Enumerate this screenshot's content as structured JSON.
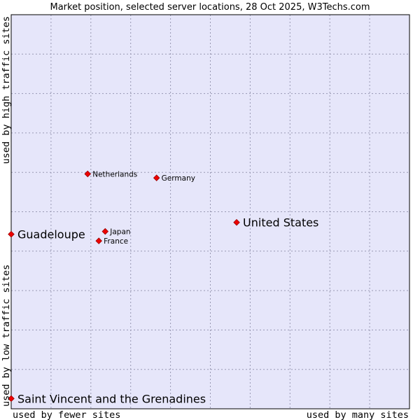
{
  "chart_data": {
    "type": "scatter",
    "title": "Market position, selected server locations, 28 Oct 2025, W3Techs.com",
    "xlabel_low": "used by fewer sites",
    "xlabel_high": "used by many sites",
    "ylabel_low": "used by low traffic sites",
    "ylabel_high": "used by high traffic sites",
    "xlim": [
      0,
      100
    ],
    "ylim": [
      0,
      100
    ],
    "grid": true,
    "colors": {
      "plot_bg": "#e6e6fa",
      "grid": "#9999b3",
      "marker": "#ee0000",
      "marker_edge": "#990000",
      "frame": "#000000"
    },
    "points": [
      {
        "label": "Netherlands",
        "x": 19.2,
        "y": 59.6,
        "size": "small"
      },
      {
        "label": "Germany",
        "x": 36.5,
        "y": 58.6,
        "size": "small"
      },
      {
        "label": "United States",
        "x": 56.6,
        "y": 47.3,
        "size": "big"
      },
      {
        "label": "Guadeloupe",
        "x": 0.0,
        "y": 44.3,
        "size": "big"
      },
      {
        "label": "Japan",
        "x": 23.6,
        "y": 45.0,
        "size": "small"
      },
      {
        "label": "France",
        "x": 22.0,
        "y": 42.6,
        "size": "small"
      },
      {
        "label": "Saint Vincent and the Grenadines",
        "x": 0.0,
        "y": 2.6,
        "size": "big"
      }
    ]
  }
}
